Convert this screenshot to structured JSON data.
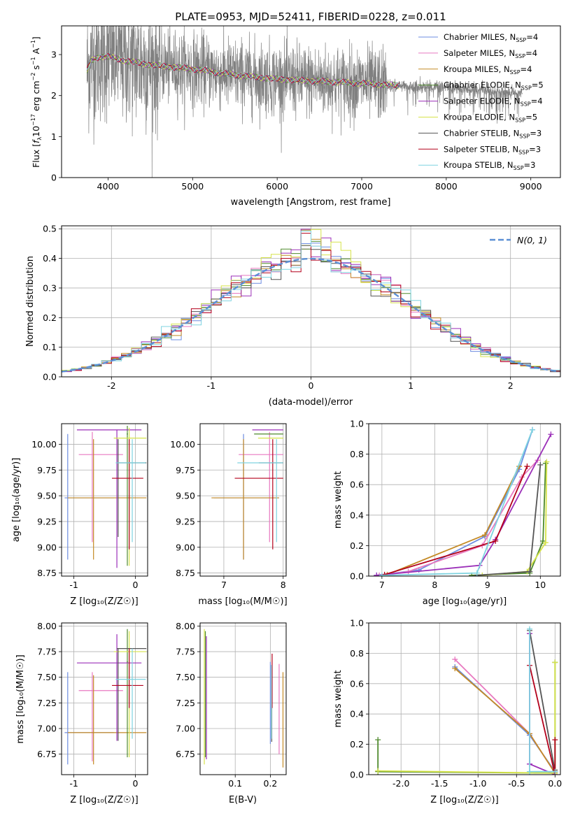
{
  "figure": {
    "title": "PLATE=0953, MJD=52411, FIBERID=0228, z=0.011"
  },
  "colors": {
    "grid": "#b0b0b0",
    "data_spectrum": "#808080",
    "normal_curve": "#5b8fd4"
  },
  "models": [
    {
      "name": "Chabrier MILES",
      "nssp": "4",
      "color": "#6d8ce0"
    },
    {
      "name": "Salpeter MILES",
      "nssp": "4",
      "color": "#e879c0"
    },
    {
      "name": "Kroupa MILES",
      "nssp": "4",
      "color": "#c48a25"
    },
    {
      "name": "Chabrier ELODIE",
      "nssp": "5",
      "color": "#4f8a2d"
    },
    {
      "name": "Salpeter ELODIE",
      "nssp": "4",
      "color": "#9b2fb8"
    },
    {
      "name": "Kroupa ELODIE",
      "nssp": "5",
      "color": "#d6e34a"
    },
    {
      "name": "Chabrier STELIB",
      "nssp": "3",
      "color": "#555555"
    },
    {
      "name": "Salpeter STELIB",
      "nssp": "3",
      "color": "#b3001b"
    },
    {
      "name": "Kroupa STELIB",
      "nssp": "3",
      "color": "#7fd3e0"
    }
  ],
  "chart_data": [
    {
      "id": "spectrum",
      "type": "line",
      "title": "PLATE=0953, MJD=52411, FIBERID=0228, z=0.011",
      "xlabel": "wavelength [Angstrom, rest frame]",
      "ylabel": "Flux [f_λ 10^-17 erg cm^-2 s^-1 A^-1]",
      "xlim": [
        3450,
        9350
      ],
      "ylim": [
        0,
        3.7
      ],
      "xticks": [
        4000,
        5000,
        6000,
        7000,
        8000,
        9000
      ],
      "yticks": [
        0,
        1,
        2,
        3
      ],
      "legend": "top-right",
      "continuum": {
        "x": [
          3750,
          3800,
          3900,
          4000,
          4200,
          4500,
          5000,
          5500,
          6000,
          6500,
          7000,
          7400,
          7500,
          8000,
          8500,
          8800,
          9100
        ],
        "y": [
          2.6,
          2.85,
          2.95,
          2.95,
          2.85,
          2.75,
          2.65,
          2.5,
          2.4,
          2.35,
          2.3,
          2.25,
          2.22,
          2.2,
          2.12,
          2.05,
          2.05
        ]
      },
      "data_noise_amplitude": 0.9,
      "data_x_range": [
        3750,
        8900
      ]
    },
    {
      "id": "residuals",
      "type": "histogram",
      "xlabel": "(data-model)/error",
      "ylabel": "Normed distribution",
      "xlim": [
        -2.5,
        2.5
      ],
      "ylim": [
        0,
        0.51
      ],
      "xticks": [
        -2,
        -1,
        0,
        1,
        2
      ],
      "yticks": [
        0.0,
        0.1,
        0.2,
        0.3,
        0.4,
        0.5
      ],
      "legend": "top-right",
      "reference_curve": {
        "name": "N(0,1)",
        "mean": 0,
        "sigma": 1
      },
      "bin_width": 0.1
    },
    {
      "id": "age_vs_Z",
      "type": "scatter",
      "xlabel": "Z [log10(Z/Z☉)]",
      "ylabel": "age [log10(age/yr)]",
      "xlim": [
        -1.2,
        0.2
      ],
      "ylim": [
        8.72,
        10.2
      ],
      "xticks": [
        -1,
        0
      ],
      "yticks": [
        8.75,
        9.0,
        9.25,
        9.5,
        9.75,
        10.0
      ]
    },
    {
      "id": "age_vs_mass",
      "type": "scatter",
      "xlabel": "mass [log10(M/M☉)]",
      "ylabel": "",
      "xlim": [
        6.6,
        8.05
      ],
      "ylim": [
        8.72,
        10.2
      ],
      "xticks": [
        7,
        8
      ],
      "yticks": [
        8.75,
        9.0,
        9.25,
        9.5,
        9.75,
        10.0
      ]
    },
    {
      "id": "weight_vs_age",
      "type": "line",
      "xlabel": "age [log10(age/yr)]",
      "ylabel": "mass weight",
      "xlim": [
        6.75,
        10.38
      ],
      "ylim": [
        0,
        1.0
      ],
      "xticks": [
        7,
        8,
        9,
        10
      ],
      "yticks": [
        0.0,
        0.2,
        0.4,
        0.6,
        0.8,
        1.0
      ],
      "series": [
        {
          "model": 0,
          "x": [
            6.9,
            7.7,
            8.95,
            9.6,
            9.85
          ],
          "y": [
            0.005,
            0.04,
            0.26,
            0.7,
            0.96
          ]
        },
        {
          "model": 1,
          "x": [
            6.95,
            7.5,
            8.9,
            9.65,
            9.95
          ],
          "y": [
            0.005,
            0.03,
            0.2,
            0.65,
            0.76
          ]
        },
        {
          "model": 2,
          "x": [
            7.1,
            8.95,
            9.6
          ],
          "y": [
            0.01,
            0.27,
            0.72
          ]
        },
        {
          "model": 3,
          "x": [
            8.7,
            9.8,
            10.05,
            10.1
          ],
          "y": [
            0.005,
            0.02,
            0.23,
            0.74
          ]
        },
        {
          "model": 4,
          "x": [
            6.9,
            8.85,
            9.15,
            10.2
          ],
          "y": [
            0.005,
            0.07,
            0.24,
            0.93
          ]
        },
        {
          "model": 5,
          "x": [
            8.9,
            9.75,
            10.1,
            10.12
          ],
          "y": [
            0.005,
            0.03,
            0.22,
            0.75
          ]
        },
        {
          "model": 6,
          "x": [
            8.8,
            9.8,
            10.0
          ],
          "y": [
            0.005,
            0.03,
            0.73
          ]
        },
        {
          "model": 7,
          "x": [
            7.05,
            9.15,
            9.75
          ],
          "y": [
            0.01,
            0.23,
            0.72
          ]
        },
        {
          "model": 8,
          "x": [
            7.0,
            8.8,
            9.85
          ],
          "y": [
            0.005,
            0.02,
            0.96
          ]
        }
      ]
    },
    {
      "id": "mass_vs_Z",
      "type": "scatter",
      "xlabel": "Z [log10(Z/Z☉)]",
      "ylabel": "mass [log10(M/M☉)]",
      "xlim": [
        -1.2,
        0.2
      ],
      "ylim": [
        6.55,
        8.03
      ],
      "xticks": [
        -1,
        0
      ],
      "yticks": [
        6.75,
        7.0,
        7.25,
        7.5,
        7.75,
        8.0
      ]
    },
    {
      "id": "mass_vs_ebv",
      "type": "scatter",
      "xlabel": "E(B-V)",
      "ylabel": "",
      "xlim": [
        0.0,
        0.245
      ],
      "ylim": [
        6.55,
        8.03
      ],
      "xticks": [
        0.1,
        0.2
      ],
      "yticks": [
        6.75,
        7.0,
        7.25,
        7.5,
        7.75,
        8.0
      ],
      "points": [
        {
          "model": 0,
          "x": 0.2,
          "ylo": 6.85,
          "yhi": 7.65
        },
        {
          "model": 1,
          "x": 0.225,
          "ylo": 6.75,
          "yhi": 7.63
        },
        {
          "model": 2,
          "x": 0.236,
          "ylo": 6.62,
          "yhi": 7.55
        },
        {
          "model": 3,
          "x": 0.015,
          "ylo": 6.72,
          "yhi": 7.95
        },
        {
          "model": 4,
          "x": 0.018,
          "ylo": 6.7,
          "yhi": 7.9
        },
        {
          "model": 5,
          "x": 0.012,
          "ylo": 6.65,
          "yhi": 7.97
        },
        {
          "model": 6,
          "x": 0.204,
          "ylo": 6.87,
          "yhi": 7.6
        },
        {
          "model": 7,
          "x": 0.205,
          "ylo": 7.2,
          "yhi": 7.73
        },
        {
          "model": 8,
          "x": 0.203,
          "ylo": 6.9,
          "yhi": 7.62
        }
      ]
    },
    {
      "id": "weight_vs_Z",
      "type": "line",
      "xlabel": "Z [log10(Z/Z☉)]",
      "ylabel": "mass weight",
      "xlim": [
        -2.42,
        0.07
      ],
      "ylim": [
        0,
        1.0
      ],
      "xticks": [
        -2.0,
        -1.5,
        -1.0,
        -0.5,
        0.0
      ],
      "yticks": [
        0.0,
        0.2,
        0.4,
        0.6,
        0.8,
        1.0
      ],
      "series": [
        {
          "model": 0,
          "x": [
            -1.3,
            -0.33,
            0.0
          ],
          "y": [
            0.71,
            0.26,
            0.02
          ]
        },
        {
          "model": 1,
          "x": [
            -1.3,
            -0.33,
            0.0
          ],
          "y": [
            0.76,
            0.27,
            0.01
          ]
        },
        {
          "model": 2,
          "x": [
            -1.3,
            -0.33,
            0.0
          ],
          "y": [
            0.7,
            0.27,
            0.01
          ]
        },
        {
          "model": 3,
          "x": [
            -2.3,
            -2.3,
            0.0,
            0.0
          ],
          "y": [
            0.23,
            0.02,
            0.01,
            0.74
          ]
        },
        {
          "model": 4,
          "x": [
            -0.33,
            -0.33,
            0.0
          ],
          "y": [
            0.93,
            0.07,
            0.0
          ]
        },
        {
          "model": 5,
          "x": [
            -2.3,
            0.0,
            0.0
          ],
          "y": [
            0.025,
            0.01,
            0.74
          ]
        },
        {
          "model": 6,
          "x": [
            -0.33,
            0.0,
            0.0
          ],
          "y": [
            0.95,
            0.02,
            0.03
          ]
        },
        {
          "model": 7,
          "x": [
            -0.33,
            0.0,
            0.0
          ],
          "y": [
            0.72,
            0.0,
            0.23
          ]
        },
        {
          "model": 8,
          "x": [
            -0.33,
            -0.33,
            0.0
          ],
          "y": [
            0.96,
            0.02,
            0.02
          ]
        }
      ]
    }
  ],
  "param_fits": [
    {
      "model": 0,
      "Z": -1.1,
      "Zlo": -1.15,
      "Zhi": -0.35,
      "age": 9.48,
      "agelo": 8.88,
      "agehi": 10.1,
      "mass": 6.96,
      "masslo": 6.65,
      "masshi": 7.55
    },
    {
      "model": 1,
      "Z": -0.7,
      "Zlo": -0.92,
      "Zhi": -0.2,
      "age": 9.9,
      "agelo": 9.05,
      "agehi": 10.12,
      "mass": 7.37,
      "masslo": 6.68,
      "masshi": 7.55
    },
    {
      "model": 2,
      "Z": -0.68,
      "Zlo": -1.1,
      "Zhi": 0.18,
      "age": 9.48,
      "agelo": 8.88,
      "agehi": 10.05,
      "mass": 6.96,
      "masslo": 6.65,
      "masshi": 7.52
    },
    {
      "model": 3,
      "Z": -0.13,
      "Zlo": -0.14,
      "Zhi": -0.12,
      "age": 10.1,
      "agelo": 8.82,
      "agehi": 10.18,
      "mass": 7.65,
      "masslo": 6.72,
      "masshi": 7.97
    },
    {
      "model": 4,
      "Z": -0.3,
      "Zlo": -0.95,
      "Zhi": 0.1,
      "age": 10.14,
      "agelo": 8.8,
      "agehi": 10.14,
      "mass": 7.64,
      "masslo": 6.88,
      "masshi": 7.92
    },
    {
      "model": 5,
      "Z": -0.1,
      "Zlo": -0.35,
      "Zhi": 0.18,
      "age": 10.06,
      "agelo": 8.82,
      "agehi": 10.16,
      "mass": 7.75,
      "masslo": 6.72,
      "masshi": 7.95
    },
    {
      "model": 6,
      "Z": -0.28,
      "Zlo": -0.3,
      "Zhi": 0.18,
      "age": 9.82,
      "agelo": 9.1,
      "agehi": 10.05,
      "mass": 7.78,
      "masslo": 6.88,
      "masshi": 7.78
    },
    {
      "model": 7,
      "Z": -0.1,
      "Zlo": -0.38,
      "Zhi": 0.13,
      "age": 9.67,
      "agelo": 8.98,
      "agehi": 10.05,
      "mass": 7.42,
      "masslo": 7.2,
      "masshi": 7.78
    },
    {
      "model": 8,
      "Z": -0.05,
      "Zlo": -0.32,
      "Zhi": 0.17,
      "age": 9.82,
      "agelo": 9.05,
      "agehi": 10.05,
      "mass": 7.48,
      "masslo": 6.9,
      "masshi": 7.78
    }
  ],
  "labels": {
    "spectrum_xlabel": "wavelength [Angstrom, rest frame]",
    "hist_xlabel": "(data-model)/error",
    "hist_ylabel": "Normed distribution",
    "hist_legend": "N(0, 1)",
    "age_ylabel": "age  [log10(age/yr)]",
    "Z_xlabel": "Z [log10(Z/Z☉)]",
    "mass_xlabel": "mass [log10(M/M☉)]",
    "weight_ylabel": "mass weight",
    "age_xlabel": "age  [log10(age/yr)]",
    "mass_ylabel": "mass [log10(M/M☉)]",
    "ebv_xlabel": "E(B-V)"
  }
}
